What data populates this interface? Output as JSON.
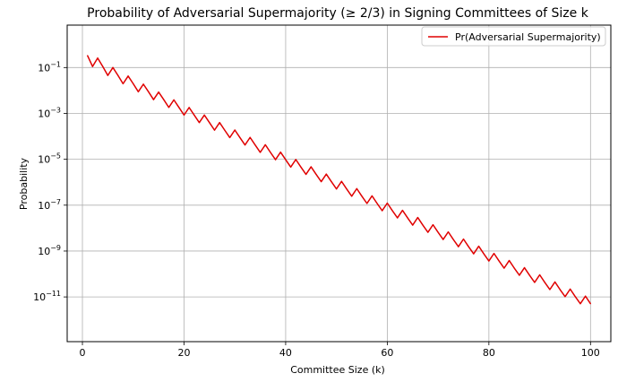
{
  "chart_data": {
    "type": "line",
    "title": "Probability of Adversarial Supermajority (≥ 2/3) in Signing Committees of Size k",
    "xlabel": "Committee Size (k)",
    "ylabel": "Probability",
    "xlim": [
      -3,
      104
    ],
    "ylim_log10": [
      -12.95,
      0.85
    ],
    "yscale": "log",
    "grid": true,
    "legend_position": "top-right",
    "x_ticks": [
      {
        "value": 0,
        "label": "0"
      },
      {
        "value": 20,
        "label": "20"
      },
      {
        "value": 40,
        "label": "40"
      },
      {
        "value": 60,
        "label": "60"
      },
      {
        "value": 80,
        "label": "80"
      },
      {
        "value": 100,
        "label": "100"
      }
    ],
    "y_ticks": [
      {
        "exp": -1,
        "base": "10",
        "sup": "−1"
      },
      {
        "exp": -3,
        "base": "10",
        "sup": "−3"
      },
      {
        "exp": -5,
        "base": "10",
        "sup": "−5"
      },
      {
        "exp": -7,
        "base": "10",
        "sup": "−7"
      },
      {
        "exp": -9,
        "base": "10",
        "sup": "−9"
      },
      {
        "exp": -11,
        "base": "10",
        "sup": "−11"
      }
    ],
    "series": [
      {
        "name": "Pr(Adversarial Supermajority)",
        "color": "#e00000",
        "x": [
          1,
          2,
          3,
          4,
          5,
          6,
          7,
          8,
          9,
          10,
          11,
          12,
          13,
          14,
          15,
          16,
          17,
          18,
          19,
          20,
          21,
          22,
          23,
          24,
          25,
          26,
          27,
          28,
          29,
          30,
          31,
          32,
          33,
          34,
          35,
          36,
          37,
          38,
          39,
          40,
          41,
          42,
          43,
          44,
          45,
          46,
          47,
          48,
          49,
          50,
          51,
          52,
          53,
          54,
          55,
          56,
          57,
          58,
          59,
          60,
          61,
          62,
          63,
          64,
          65,
          66,
          67,
          68,
          69,
          70,
          71,
          72,
          73,
          74,
          75,
          76,
          77,
          78,
          79,
          80,
          81,
          82,
          83,
          84,
          85,
          86,
          87,
          88,
          89,
          90,
          91,
          92,
          93,
          94,
          95,
          96,
          97,
          98,
          99,
          100
        ],
        "y": [
          0.333,
          0.111,
          0.259,
          0.111,
          0.0453,
          0.1,
          0.0453,
          0.0197,
          0.0424,
          0.0197,
          0.0088,
          0.0188,
          0.0088,
          0.004,
          0.0085,
          0.004,
          0.00183,
          0.0039,
          0.00183,
          0.00085,
          0.00181,
          0.00085,
          0.0004,
          0.00085,
          0.0004,
          0.000187,
          0.000399,
          0.000187,
          8.85e-05,
          0.000189,
          8.85e-05,
          4.21e-05,
          8.98e-05,
          4.21e-05,
          2.01e-05,
          4.29e-05,
          2.01e-05,
          9.6e-06,
          2.05e-05,
          9.6e-06,
          4.6e-06,
          9.8e-06,
          4.6e-06,
          2.2e-06,
          4.7e-06,
          2.2e-06,
          1.06e-06,
          2.26e-06,
          1.06e-06,
          5.1e-07,
          1.09e-06,
          5.1e-07,
          2.46e-07,
          5.25e-07,
          2.46e-07,
          1.19e-07,
          2.54e-07,
          1.19e-07,
          5.75e-08,
          1.23e-07,
          5.75e-08,
          2.79e-08,
          5.95e-08,
          2.79e-08,
          1.35e-08,
          2.89e-08,
          1.35e-08,
          6.57e-09,
          1.4e-08,
          6.57e-09,
          3.19e-09,
          6.82e-09,
          3.19e-09,
          1.55e-09,
          3.32e-09,
          1.55e-09,
          7.57e-10,
          1.62e-09,
          7.57e-10,
          3.69e-10,
          7.88e-10,
          3.69e-10,
          1.8e-10,
          3.85e-10,
          1.8e-10,
          8.79e-11,
          1.88e-10,
          8.79e-11,
          4.3e-11,
          9.18e-11,
          4.3e-11,
          2.1e-11,
          4.49e-11,
          2.1e-11,
          1.03e-11,
          2.2e-11,
          1.03e-11,
          5.06e-12,
          1.08e-11,
          5.06e-12
        ]
      }
    ]
  }
}
